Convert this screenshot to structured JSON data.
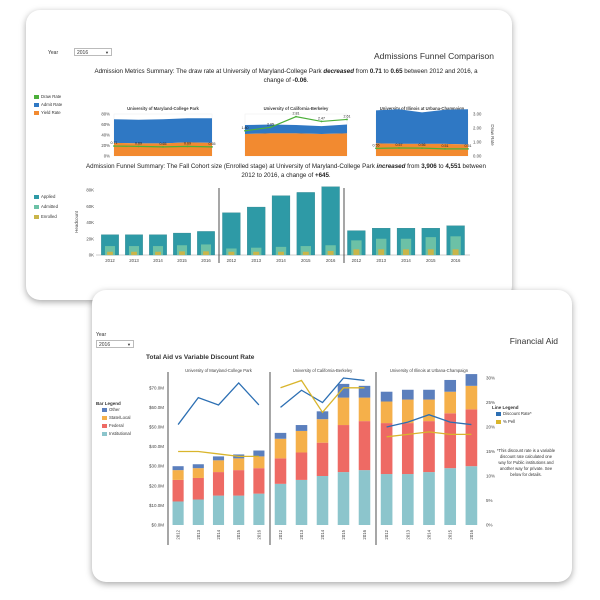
{
  "admissions": {
    "year_label": "Year",
    "year_value": "2016",
    "title": "Admissions Funnel Comparison",
    "summary1": {
      "pre": "Admission Metrics Summary: The draw rate at University of Maryland-College Park ",
      "verb": "decreased",
      "mid1": " from ",
      "from": "0.71",
      "mid2": " to ",
      "to": "0.65",
      "mid3": " between 2012 and 2016, a change of ",
      "change": "-0.06",
      "end": "."
    },
    "summary2": {
      "pre": "Admission Funnel Summary: The Fall Cohort size (Enrolled stage) at University of Maryland-College Park ",
      "verb": "increased",
      "mid1": " from ",
      "from": "3,906",
      "mid2": " to ",
      "to": "4,551",
      "mid3": " between 2012 to 2016, a change of ",
      "change": "+645",
      "end": "."
    },
    "legend_top": [
      {
        "label": "Draw Rate",
        "color": "#4caf3a"
      },
      {
        "label": "Admit Rate",
        "color": "#2f78c4"
      },
      {
        "label": "Yield Rate",
        "color": "#f28a30"
      }
    ],
    "legend_bottom": [
      {
        "label": "Applied",
        "color": "#2e9aa6"
      },
      {
        "label": "Admitted",
        "color": "#6cc1a6"
      },
      {
        "label": "Enrolled",
        "color": "#c9b54a"
      }
    ],
    "left_axis_label": "Headcount",
    "right_axis_label": "Draw Rate"
  },
  "financial": {
    "year_label": "Year",
    "year_value": "2016",
    "title": "Financial Aid",
    "subtitle": "Total Aid vs Variable Discount Rate",
    "bar_legend_title": "Bar Legend",
    "bar_legend": [
      {
        "label": "Other",
        "color": "#5b7fbd"
      },
      {
        "label": "State/Local",
        "color": "#f5b04a"
      },
      {
        "label": "Federal",
        "color": "#ee6a64"
      },
      {
        "label": "Institutional",
        "color": "#8cc5cc"
      }
    ],
    "line_legend_title": "Line Legend",
    "line_legend": [
      {
        "label": "Discount Rate*",
        "color": "#2c6fb3"
      },
      {
        "label": "% Pell",
        "color": "#d9b52c"
      }
    ],
    "footnote": "*This discount rate is a variable discount rate calculated one way for Public institutions and another way for private. See below for details."
  },
  "chart_data": [
    {
      "type": "area",
      "title": "Admission Metrics",
      "panels": [
        "University of Maryland-College Park",
        "University of California-Berkeley",
        "University of Illinois at Urbana-Champaign"
      ],
      "x": [
        "2012",
        "2013",
        "2014",
        "2015",
        "2016"
      ],
      "ylim": [
        0,
        80
      ],
      "y_ticks": [
        "0%",
        "20%",
        "40%",
        "60%",
        "80%"
      ],
      "y2lim": [
        0,
        3.0
      ],
      "y2_ticks": [
        "0.00",
        "1.00",
        "2.00",
        "3.00"
      ],
      "series": [
        {
          "name": "Admit Rate",
          "values": [
            [
              45,
              45,
              46,
              46,
              47
            ],
            [
              17,
              17,
              16,
              15,
              17
            ],
            [
              63,
              66,
              60,
              65,
              67
            ]
          ]
        },
        {
          "name": "Yield Rate",
          "values": [
            [
              25,
              24,
              24,
              26,
              25
            ],
            [
              42,
              43,
              43,
              42,
              43
            ],
            [
              24,
              23,
              23,
              23,
              22
            ]
          ]
        },
        {
          "name": "Draw Rate",
          "values": [
            [
              0.71,
              0.69,
              0.65,
              0.69,
              0.65
            ],
            [
              1.8,
              2.05,
              2.81,
              2.47,
              2.61
            ],
            [
              0.55,
              0.57,
              0.56,
              0.51,
              0.51
            ]
          ]
        }
      ],
      "data_labels": [
        [
          "0.71",
          "0.69",
          "0.65",
          "0.69",
          "0.65"
        ],
        [
          "1.80",
          "2.05",
          "2.81",
          "2.47",
          "2.61"
        ],
        [
          "0.55",
          "0.57",
          "0.56",
          "0.51",
          "0.51"
        ]
      ]
    },
    {
      "type": "bar",
      "title": "Admission Funnel",
      "panels": [
        "University of Maryland-College Park",
        "University of California-Berkeley",
        "University of Illinois at Urbana-Champaign"
      ],
      "categories": [
        "2012",
        "2013",
        "2014",
        "2015",
        "2016"
      ],
      "ylabel": "Headcount",
      "ylim": [
        0,
        80
      ],
      "y_ticks": [
        "0K",
        "20K",
        "40K",
        "60K",
        "80K"
      ],
      "series": [
        {
          "name": "Applied",
          "values": [
            [
              25,
              25,
              25,
              27,
              29
            ],
            [
              52,
              59,
              73,
              77,
              84
            ],
            [
              30,
              33,
              33,
              33,
              36
            ]
          ]
        },
        {
          "name": "Admitted",
          "values": [
            [
              11,
              11,
              11,
              12,
              13
            ],
            [
              8,
              9,
              10,
              11,
              12
            ],
            [
              18,
              20,
              20,
              22,
              23
            ]
          ]
        },
        {
          "name": "Enrolled",
          "values": [
            [
              4,
              4,
              4,
              4.5,
              4.5
            ],
            [
              4,
              4,
              4,
              4,
              5
            ],
            [
              7,
              7,
              7,
              7,
              7
            ]
          ]
        }
      ]
    },
    {
      "type": "bar",
      "title": "Total Aid vs Variable Discount Rate",
      "panels": [
        "University of Maryland-College Park",
        "University of California-Berkeley",
        "University of Illinois at Urbana-Champaign"
      ],
      "categories": [
        "2012",
        "2013",
        "2014",
        "2015",
        "2016"
      ],
      "ylim": [
        0,
        75
      ],
      "y_ticks": [
        "$0.0M",
        "$10.0M",
        "$20.0M",
        "$30.0M",
        "$40.0M",
        "$50.0M",
        "$60.0M",
        "$70.0M"
      ],
      "y2lim": [
        0,
        30
      ],
      "y2_ticks": [
        "0%",
        "5%",
        "10%",
        "15%",
        "20%",
        "25%",
        "30%"
      ],
      "series": [
        {
          "name": "Institutional",
          "values": [
            [
              12,
              13,
              15,
              15,
              16
            ],
            [
              21,
              23,
              25,
              27,
              28
            ],
            [
              26,
              26,
              27,
              29,
              30
            ]
          ]
        },
        {
          "name": "Federal",
          "values": [
            [
              11,
              11,
              12,
              13,
              13
            ],
            [
              13,
              14,
              17,
              24,
              25
            ],
            [
              26,
              26,
              26,
              28,
              29
            ]
          ]
        },
        {
          "name": "State/Local",
          "values": [
            [
              5,
              5,
              6,
              6,
              6
            ],
            [
              10,
              11,
              12,
              14,
              12
            ],
            [
              11,
              12,
              11,
              11,
              12
            ]
          ]
        },
        {
          "name": "Other",
          "values": [
            [
              2,
              2,
              2,
              2,
              3
            ],
            [
              3,
              3,
              4,
              7,
              6
            ],
            [
              5,
              5,
              5,
              6,
              6
            ]
          ]
        },
        {
          "name": "Discount Rate*",
          "values": [
            [
              20.5,
              26,
              24.5,
              29,
              24.5
            ],
            [
              24,
              27.5,
              25,
              30,
              29.5
            ],
            [
              20,
              21,
              22.5,
              21,
              20.5
            ]
          ]
        },
        {
          "name": "% Pell",
          "values": [
            [
              15,
              15,
              14.5,
              14,
              14
            ],
            [
              28,
              29.5,
              23,
              28,
              28
            ],
            [
              18,
              18.5,
              19,
              18.5,
              18.5
            ]
          ]
        }
      ]
    }
  ]
}
